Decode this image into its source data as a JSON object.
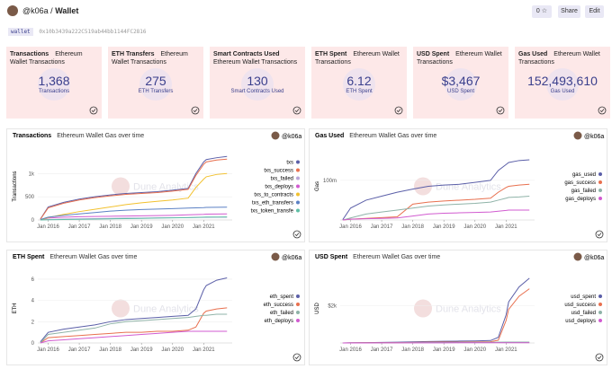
{
  "header": {
    "owner": "@k06a",
    "separator": "/",
    "title": "Wallet",
    "star_count": "0",
    "share": "Share",
    "edit": "Edit"
  },
  "parameter": {
    "name": "wallet",
    "value": "0x10b3439a222C519ab44bb1144FC2816"
  },
  "counters": [
    {
      "title": "Transactions",
      "subtitle": "Ethereum Wallet Transactions",
      "value": "1,368",
      "label": "Transactions"
    },
    {
      "title": "ETH Transfers",
      "subtitle": "Ethereum Wallet Transactions",
      "value": "275",
      "label": "ETH Transfers"
    },
    {
      "title": "Smart Contracts Used",
      "subtitle": "Ethereum Wallet Transactions",
      "value": "130",
      "label": "Smart Contracts Used"
    },
    {
      "title": "ETH Spent",
      "subtitle": "Ethereum Wallet Transactions",
      "value": "6.12",
      "label": "ETH Spent"
    },
    {
      "title": "USD Spent",
      "subtitle": "Ethereum Wallet Transactions",
      "value": "$3,467",
      "label": "USD Spent"
    },
    {
      "title": "Gas Used",
      "subtitle": "Ethereum Wallet Transactions",
      "value": "152,493,610",
      "label": "Gas Used"
    }
  ],
  "charts": [
    {
      "type": "line",
      "title": "Transactions",
      "subtitle": "Ethereum Wallet Gas over time",
      "author": "@k06a",
      "watermark": "Dune Analytics",
      "y_label": "Transactions",
      "legend": "right",
      "x": [
        "2015-10",
        "2016-01",
        "2016-07",
        "2017-01",
        "2017-07",
        "2018-01",
        "2018-07",
        "2019-01",
        "2019-07",
        "2020-01",
        "2020-07",
        "2020-10",
        "2021-01",
        "2021-02",
        "2021-06",
        "2021-10"
      ],
      "xlim": [
        "2015-09",
        "2021-12"
      ],
      "xticks": [
        {
          "value": "2016-01",
          "label": "Jan 2016"
        },
        {
          "value": "2017-01",
          "label": "Jan 2017"
        },
        {
          "value": "2018-01",
          "label": "Jan 2018"
        },
        {
          "value": "2019-01",
          "label": "Jan 2019"
        },
        {
          "value": "2020-01",
          "label": "Jan 2020"
        },
        {
          "value": "2021-01",
          "label": "Jan 2021"
        }
      ],
      "ylim": [
        0,
        1450
      ],
      "yticks": [
        0,
        500,
        {
          "value": 1000,
          "label": "1k"
        }
      ],
      "series": [
        {
          "name": "txs",
          "color": "#5b5fa8",
          "values": [
            20,
            280,
            380,
            450,
            500,
            540,
            570,
            590,
            610,
            640,
            680,
            1000,
            1250,
            1300,
            1340,
            1368
          ]
        },
        {
          "name": "txs_success",
          "color": "#e8704f",
          "values": [
            15,
            260,
            360,
            430,
            480,
            520,
            550,
            570,
            590,
            620,
            660,
            960,
            1200,
            1250,
            1290,
            1310
          ]
        },
        {
          "name": "txs_failed",
          "color": "#b9a6d8",
          "values": [
            2,
            10,
            20,
            25,
            30,
            35,
            40,
            42,
            45,
            48,
            50,
            52,
            55,
            56,
            57,
            58
          ]
        },
        {
          "name": "txs_deploys",
          "color": "#d15bd0",
          "values": [
            0,
            40,
            60,
            70,
            75,
            80,
            85,
            90,
            95,
            100,
            110,
            115,
            120,
            125,
            128,
            130
          ]
        },
        {
          "name": "txs_to_contracts",
          "color": "#f2c12e",
          "values": [
            0,
            50,
            120,
            180,
            230,
            280,
            330,
            370,
            400,
            430,
            470,
            700,
            880,
            930,
            980,
            1000
          ]
        },
        {
          "name": "txs_eth_transfers",
          "color": "#5b80c4",
          "values": [
            10,
            60,
            100,
            130,
            160,
            190,
            210,
            225,
            235,
            245,
            255,
            260,
            265,
            270,
            272,
            275
          ]
        },
        {
          "name": "txs_token_transfe",
          "color": "#5fbfa6",
          "values": [
            0,
            5,
            10,
            15,
            20,
            25,
            30,
            35,
            40,
            45,
            50,
            55,
            60,
            62,
            64,
            65
          ]
        }
      ]
    },
    {
      "type": "line",
      "title": "Gas Used",
      "subtitle": "Ethereum Wallet Gas over time",
      "author": "@k06a",
      "watermark": "Dune Analytics",
      "y_label": "Gas",
      "legend": "right",
      "x": [
        "2015-10",
        "2016-01",
        "2016-07",
        "2017-01",
        "2017-07",
        "2018-01",
        "2018-07",
        "2019-01",
        "2019-07",
        "2020-01",
        "2020-07",
        "2020-10",
        "2021-01",
        "2021-02",
        "2021-06",
        "2021-10"
      ],
      "xlim": [
        "2015-09",
        "2021-12"
      ],
      "xticks": [
        {
          "value": "2016-01",
          "label": "Jan 2016"
        },
        {
          "value": "2017-01",
          "label": "Jan 2017"
        },
        {
          "value": "2018-01",
          "label": "Jan 2018"
        },
        {
          "value": "2019-01",
          "label": "Jan 2019"
        },
        {
          "value": "2020-01",
          "label": "Jan 2020"
        },
        {
          "value": "2021-01",
          "label": "Jan 2021"
        }
      ],
      "ylim": [
        0,
        170000000
      ],
      "yticks": [
        {
          "value": 100000000,
          "label": "100m"
        }
      ],
      "series": [
        {
          "name": "gas_used",
          "color": "#5b5fa8",
          "values": [
            1000000,
            30000000,
            50000000,
            60000000,
            70000000,
            78000000,
            85000000,
            88000000,
            90000000,
            95000000,
            100000000,
            125000000,
            140000000,
            145000000,
            150000000,
            152000000
          ]
        },
        {
          "name": "gas_success",
          "color": "#e8704f",
          "values": [
            0,
            2000000,
            4000000,
            6000000,
            8000000,
            40000000,
            45000000,
            48000000,
            50000000,
            52000000,
            55000000,
            70000000,
            82000000,
            85000000,
            88000000,
            90000000
          ]
        },
        {
          "name": "gas_failed",
          "color": "#8fb3a8",
          "values": [
            0,
            5000000,
            15000000,
            20000000,
            25000000,
            30000000,
            35000000,
            38000000,
            40000000,
            42000000,
            45000000,
            50000000,
            55000000,
            57000000,
            58000000,
            60000000
          ]
        },
        {
          "name": "gas_deploys",
          "color": "#d15bd0",
          "values": [
            0,
            2000000,
            3000000,
            4000000,
            5000000,
            10000000,
            15000000,
            17000000,
            18000000,
            19000000,
            20000000,
            22000000,
            24000000,
            25000000,
            25000000,
            25000000
          ]
        }
      ]
    },
    {
      "type": "line",
      "title": "ETH Spent",
      "subtitle": "Ethereum Wallet Gas over time",
      "author": "@k06a",
      "watermark": "Dune Analytics",
      "y_label": "ETH",
      "legend": "right",
      "x": [
        "2015-10",
        "2016-01",
        "2016-07",
        "2017-01",
        "2017-07",
        "2018-01",
        "2018-07",
        "2019-01",
        "2019-07",
        "2020-01",
        "2020-07",
        "2020-10",
        "2021-01",
        "2021-02",
        "2021-06",
        "2021-10"
      ],
      "xlim": [
        "2015-09",
        "2021-12"
      ],
      "xticks": [
        {
          "value": "2016-01",
          "label": "Jan 2016"
        },
        {
          "value": "2017-01",
          "label": "Jan 2017"
        },
        {
          "value": "2018-01",
          "label": "Jan 2018"
        },
        {
          "value": "2019-01",
          "label": "Jan 2019"
        },
        {
          "value": "2020-01",
          "label": "Jan 2020"
        },
        {
          "value": "2021-01",
          "label": "Jan 2021"
        }
      ],
      "ylim": [
        0,
        6.5
      ],
      "yticks": [
        0,
        2,
        4,
        6
      ],
      "series": [
        {
          "name": "eth_spent",
          "color": "#5b5fa8",
          "values": [
            0.1,
            1.0,
            1.3,
            1.5,
            1.7,
            2.0,
            2.2,
            2.3,
            2.4,
            2.5,
            2.6,
            3.2,
            5.0,
            5.4,
            5.9,
            6.12
          ]
        },
        {
          "name": "eth_success",
          "color": "#e8704f",
          "values": [
            0,
            0.5,
            0.6,
            0.7,
            0.8,
            0.9,
            1.0,
            1.0,
            1.1,
            1.1,
            1.2,
            1.5,
            2.8,
            3.0,
            3.2,
            3.3
          ]
        },
        {
          "name": "eth_failed",
          "color": "#8fb3a8",
          "values": [
            0,
            0.8,
            1.0,
            1.2,
            1.4,
            1.8,
            2.0,
            2.1,
            2.2,
            2.3,
            2.4,
            2.5,
            2.6,
            2.6,
            2.7,
            2.7
          ]
        },
        {
          "name": "eth_deploys",
          "color": "#d15bd0",
          "values": [
            0,
            0.2,
            0.3,
            0.4,
            0.5,
            0.6,
            0.7,
            0.8,
            0.9,
            1.0,
            1.1,
            1.1,
            1.1,
            1.1,
            1.1,
            1.1
          ]
        }
      ]
    },
    {
      "type": "line",
      "title": "USD Spent",
      "subtitle": "Ethereum Wallet Gas over time",
      "author": "@k06a",
      "watermark": "Dune Analytics",
      "y_label": "USD",
      "legend": "right",
      "x": [
        "2015-10",
        "2016-01",
        "2016-07",
        "2017-01",
        "2017-07",
        "2018-01",
        "2018-07",
        "2019-01",
        "2019-07",
        "2020-01",
        "2020-07",
        "2020-10",
        "2021-01",
        "2021-02",
        "2021-06",
        "2021-10"
      ],
      "xlim": [
        "2015-09",
        "2021-12"
      ],
      "xticks": [
        {
          "value": "2016-01",
          "label": "Jan 2016"
        },
        {
          "value": "2017-01",
          "label": "Jan 2017"
        },
        {
          "value": "2018-01",
          "label": "Jan 2018"
        },
        {
          "value": "2019-01",
          "label": "Jan 2019"
        },
        {
          "value": "2020-01",
          "label": "Jan 2020"
        },
        {
          "value": "2021-01",
          "label": "Jan 2021"
        }
      ],
      "ylim": [
        0,
        3700
      ],
      "yticks": [
        {
          "value": 2000,
          "label": "$2k"
        }
      ],
      "series": [
        {
          "name": "usd_spent",
          "color": "#5b5fa8",
          "values": [
            1,
            10,
            20,
            30,
            40,
            60,
            80,
            90,
            100,
            110,
            130,
            300,
            1500,
            2200,
            3000,
            3467
          ]
        },
        {
          "name": "usd_success",
          "color": "#e8704f",
          "values": [
            0,
            5,
            10,
            15,
            20,
            30,
            40,
            45,
            50,
            55,
            65,
            150,
            1200,
            1800,
            2500,
            2900
          ]
        },
        {
          "name": "usd_failed",
          "color": "#8fb3a8",
          "values": [
            0,
            3,
            5,
            8,
            10,
            20,
            25,
            27,
            30,
            32,
            35,
            40,
            45,
            46,
            47,
            48
          ]
        },
        {
          "name": "usd_deploys",
          "color": "#d15bd0",
          "values": [
            0,
            2,
            3,
            4,
            5,
            6,
            7,
            8,
            9,
            10,
            11,
            12,
            13,
            14,
            15,
            15
          ]
        }
      ]
    }
  ]
}
